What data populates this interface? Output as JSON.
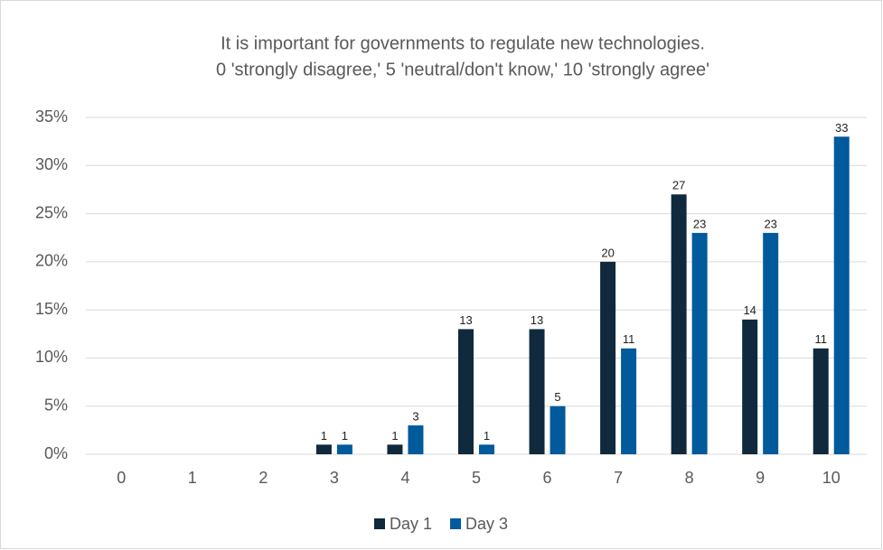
{
  "chart_data": {
    "type": "bar",
    "title": [
      "It is important for governments to regulate new technologies.",
      "0 'strongly disagree,' 5 'neutral/don't know,' 10 'strongly agree'"
    ],
    "categories": [
      "0",
      "1",
      "2",
      "3",
      "4",
      "5",
      "6",
      "7",
      "8",
      "9",
      "10"
    ],
    "series": [
      {
        "name": "Day 1",
        "color": "#10293c",
        "values": [
          0,
          0,
          0,
          1,
          1,
          13,
          13,
          20,
          27,
          14,
          11
        ]
      },
      {
        "name": "Day 3",
        "color": "#005a9c",
        "values": [
          0,
          0,
          0,
          1,
          3,
          1,
          5,
          11,
          23,
          23,
          33
        ]
      }
    ],
    "ylim": [
      0,
      35
    ],
    "yticks": [
      {
        "value": 0,
        "label": "0%"
      },
      {
        "value": 5,
        "label": "5%"
      },
      {
        "value": 10,
        "label": "10%"
      },
      {
        "value": 15,
        "label": "15%"
      },
      {
        "value": 20,
        "label": "20%"
      },
      {
        "value": 25,
        "label": "25%"
      },
      {
        "value": 30,
        "label": "30%"
      },
      {
        "value": 35,
        "label": "35%"
      }
    ],
    "grid": true,
    "legend": "bottom"
  }
}
